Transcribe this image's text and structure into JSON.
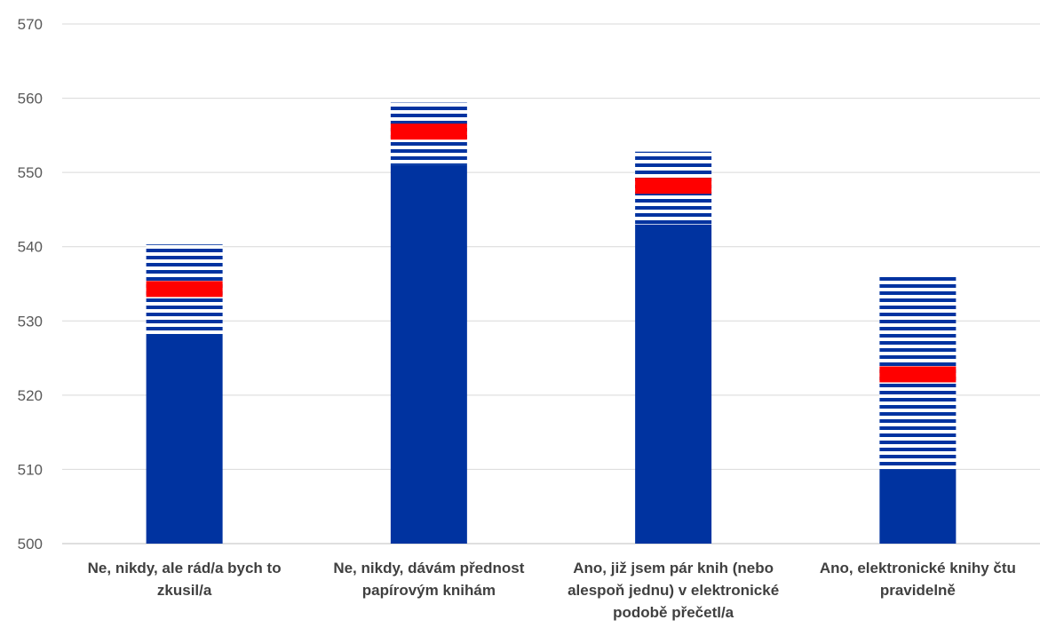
{
  "chart_data": {
    "type": "bar",
    "title": "",
    "xlabel": "",
    "ylabel": "",
    "ylim": [
      500,
      570
    ],
    "yticks": [
      500,
      510,
      520,
      530,
      540,
      550,
      560,
      570
    ],
    "grid": true,
    "legend": "none",
    "categories": [
      [
        "Ne, nikdy, ale rád/a bych to",
        "zkusil/a"
      ],
      [
        "Ne, nikdy, dávám přednost",
        "papírovým knihám"
      ],
      [
        "Ano, již jsem pár knih (nebo",
        "alespoň jednu) v elektronické",
        "podobě přečetl/a"
      ],
      [
        "Ano, elektronické knihy čtu",
        "pravidelně"
      ]
    ],
    "series": [
      {
        "role": "lower-bound",
        "values": [
          528,
          551,
          543,
          510
        ]
      },
      {
        "role": "mean",
        "values": [
          534.3,
          555.5,
          548.2,
          522.8
        ]
      },
      {
        "role": "upper-bound",
        "values": [
          540.3,
          559.4,
          552.8,
          535.9
        ]
      }
    ],
    "colors": {
      "bar": "#0033a0",
      "mean": "#ff0000",
      "stripe_bg": "#ffffff",
      "grid": "#d9d9d9",
      "axis": "#bfbfbf"
    }
  }
}
